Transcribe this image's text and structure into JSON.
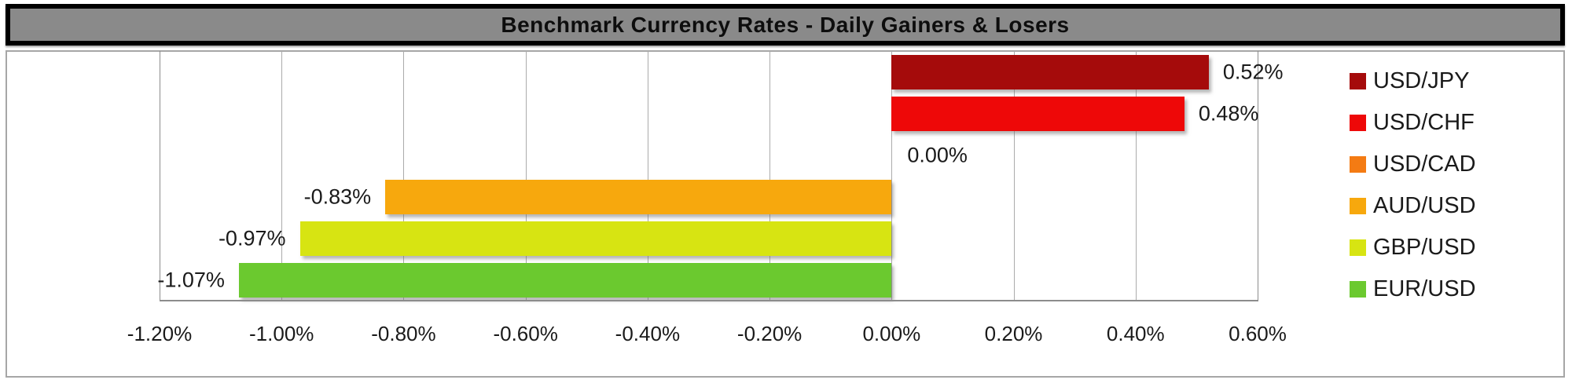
{
  "title": "Benchmark Currency Rates - Daily Gainers & Losers",
  "chart_data": {
    "type": "bar",
    "orientation": "horizontal",
    "title": "Benchmark Currency Rates - Daily Gainers & Losers",
    "categories": [
      "USD/JPY",
      "USD/CHF",
      "USD/CAD",
      "AUD/USD",
      "GBP/USD",
      "EUR/USD"
    ],
    "values": [
      0.52,
      0.48,
      0.0,
      -0.83,
      -0.97,
      -1.07
    ],
    "value_labels": [
      "0.52%",
      "0.48%",
      "0.00%",
      "-0.83%",
      "-0.97%",
      "-1.07%"
    ],
    "bar_colors": [
      "#a50b0b",
      "#ee0808",
      "#f47b13",
      "#f7a80d",
      "#d7e412",
      "#6bc92f"
    ],
    "xlim": [
      -1.2,
      0.6
    ],
    "x_tick_step": 0.2,
    "x_tick_labels": [
      "-1.20%",
      "-1.00%",
      "-0.80%",
      "-0.60%",
      "-0.40%",
      "-0.20%",
      "0.00%",
      "0.20%",
      "0.40%",
      "0.60%"
    ],
    "grid": true,
    "legend_position": "right",
    "legend_entries": [
      "USD/JPY",
      "USD/CHF",
      "USD/CAD",
      "AUD/USD",
      "GBP/USD",
      "EUR/USD"
    ]
  },
  "colors": {
    "title_bg": "#8a8a8a",
    "title_border": "#000000",
    "frame_border": "#a6a6a6",
    "gridline": "#ababab",
    "axis_line": "#8c8c8c",
    "background": "#ffffff"
  }
}
